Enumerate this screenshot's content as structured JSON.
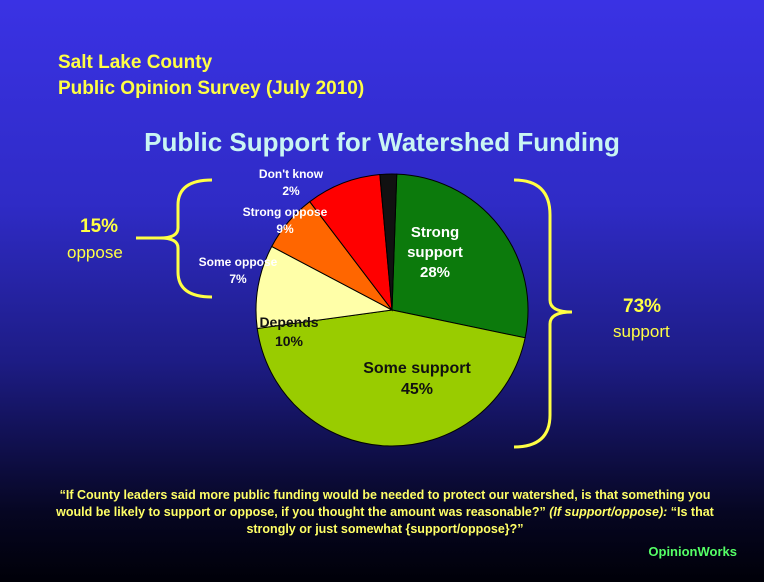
{
  "header": {
    "line1": "Salt Lake County",
    "line2": "Public Opinion Survey (July 2010)"
  },
  "chart_data": {
    "type": "pie",
    "title": "Public Support for Watershed Funding",
    "slices": [
      {
        "label_lines": [
          "Strong",
          "support"
        ],
        "value": 28,
        "value_label": "28%",
        "color": "#0c7a0c",
        "label_color": "#ffffff"
      },
      {
        "label_lines": [
          "Some support"
        ],
        "value": 45,
        "value_label": "45%",
        "color": "#99cc00",
        "label_color": "#111111"
      },
      {
        "label_lines": [
          "Depends"
        ],
        "value": 10,
        "value_label": "10%",
        "color": "#ffffa8",
        "label_color": "#111111"
      },
      {
        "label_lines": [
          "Some oppose"
        ],
        "value": 7,
        "value_label": "7%",
        "color": "#ff6600",
        "label_color": "#ffffff"
      },
      {
        "label_lines": [
          "Strong oppose"
        ],
        "value": 9,
        "value_label": "9%",
        "color": "#ff0000",
        "label_color": "#ffffff"
      },
      {
        "label_lines": [
          "Don't know"
        ],
        "value": 2,
        "value_label": "2%",
        "color": "#111111",
        "label_color": "#ffffff"
      }
    ],
    "groups": {
      "oppose": {
        "pct": "15%",
        "word": "oppose"
      },
      "support": {
        "pct": "73%",
        "word": "support"
      }
    },
    "colors": {
      "bracket": "#ffff44",
      "group_text": "#ffff44"
    }
  },
  "footer": {
    "quote_part1": "“If County leaders said more public funding would be needed to protect our watershed, is that something you would be likely to support or oppose, if you thought the amount was reasonable?”",
    "quote_italic": "(If support/oppose):",
    "quote_part2": "“Is that strongly or just somewhat {support/oppose}?”",
    "brand": "OpinionWorks"
  }
}
